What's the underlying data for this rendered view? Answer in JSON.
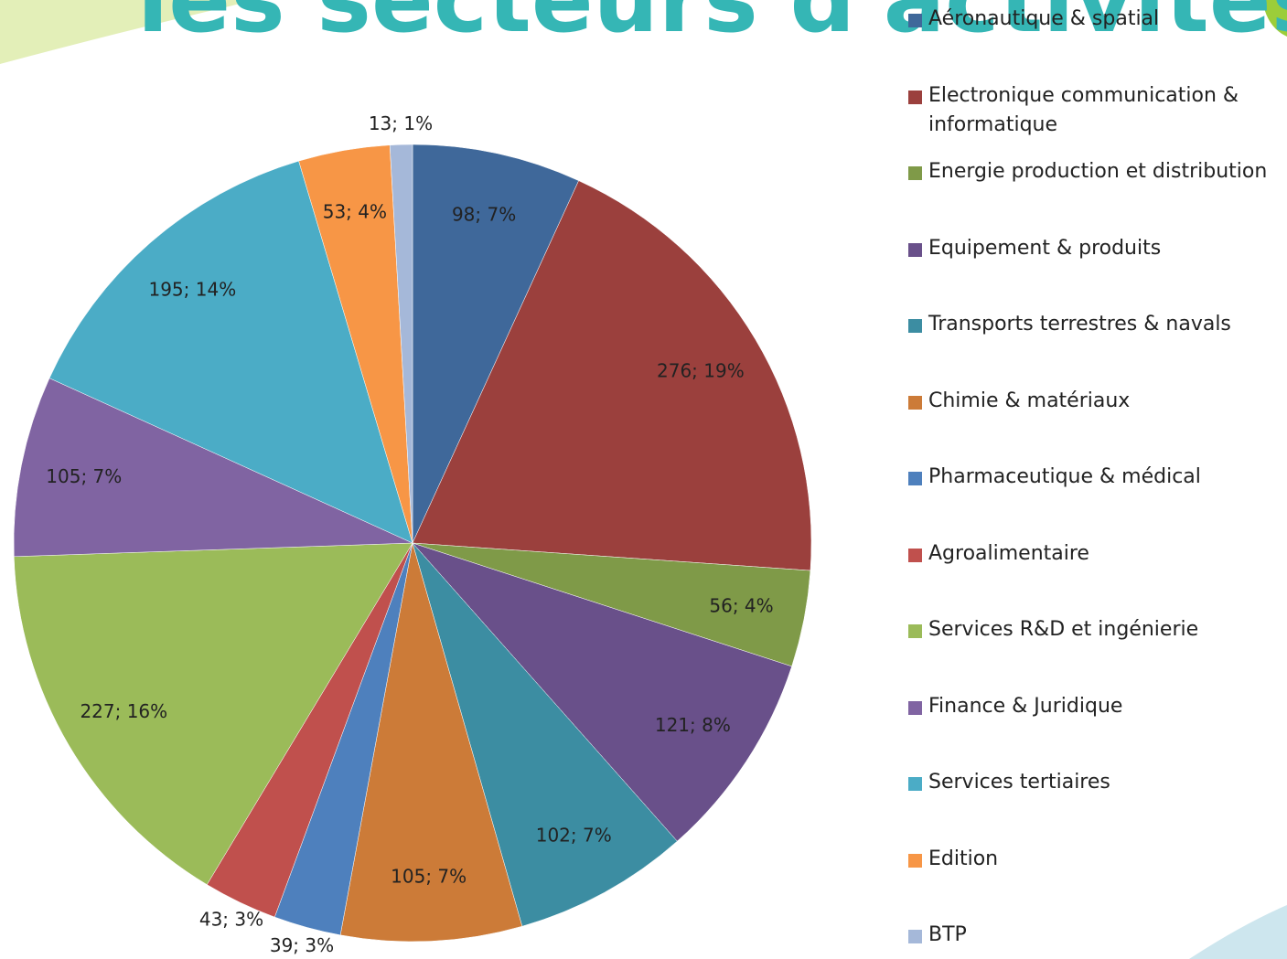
{
  "chart_data": {
    "type": "pie",
    "title": "les secteurs d'activités",
    "categories": [
      "Aéronautique & spatial",
      "Electronique communication & informatique",
      "Energie production et distribution",
      "Equipement & produits",
      "Transports terrestres & navals",
      "Chimie & matériaux",
      "Pharmaceutique & médical",
      "Agroalimentaire",
      "Services R&D et ingénierie",
      "Finance & Juridique",
      "Services tertiaires",
      "Edition",
      "BTP"
    ],
    "values": [
      98,
      276,
      56,
      121,
      102,
      105,
      39,
      43,
      227,
      105,
      195,
      53,
      13
    ],
    "value_labels": [
      "98; 7%",
      "276; 19%",
      "56; 4%",
      "121; 8%",
      "102; 7%",
      "105; 7%",
      "39; 3%",
      "43; 3%",
      "227; 16%",
      "105; 7%",
      "195; 14%",
      "53; 4%",
      "13; 1%"
    ],
    "colors": [
      "#3f689a",
      "#9b403d",
      "#7f9a48",
      "#69508a",
      "#3c8da2",
      "#cc7b38",
      "#4e80bd",
      "#c0504d",
      "#9bbb59",
      "#8064a2",
      "#4bacc6",
      "#f79646",
      "#a5b8d9"
    ],
    "legend": "right"
  }
}
